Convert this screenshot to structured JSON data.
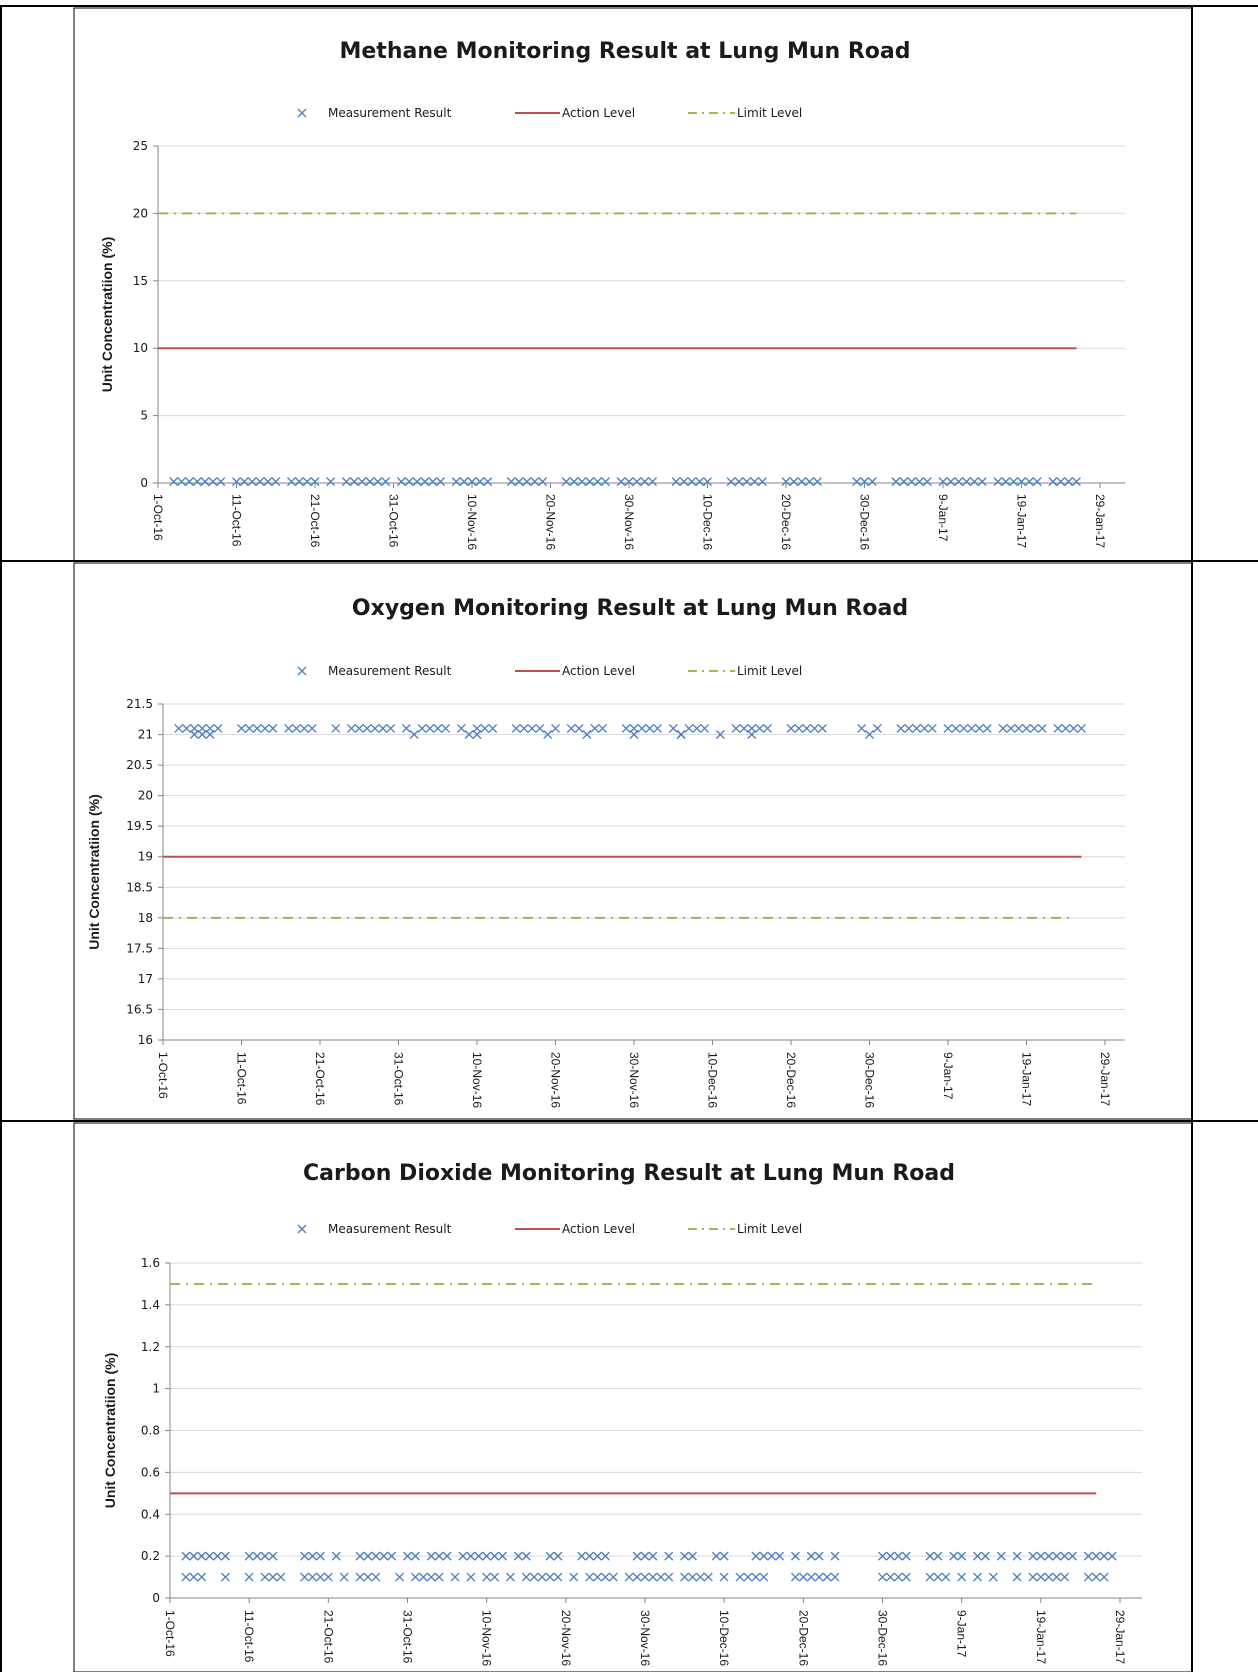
{
  "colors": {
    "measurement": "#4f81bd",
    "action": "#c0504d",
    "limit": "#9bbb59",
    "grid": "#d9d9d9",
    "axis": "#868686",
    "border": "#000000"
  },
  "chart_data": [
    {
      "type": "scatter",
      "title": "Methane Monitoring Result at Lung Mun Road",
      "ylabel": "Unit Concentratiion (%)",
      "xlabel": "",
      "legend": [
        "Measurement Result",
        "Action Level",
        "Limit Level"
      ],
      "legend_position": "top",
      "grid": true,
      "x_ticks": [
        "1-Oct-16",
        "11-Oct-16",
        "21-Oct-16",
        "31-Oct-16",
        "10-Nov-16",
        "20-Nov-16",
        "30-Nov-16",
        "10-Dec-16",
        "20-Dec-16",
        "30-Dec-16",
        "9-Jan-17",
        "19-Jan-17",
        "29-Jan-17"
      ],
      "y_ticks": [
        "0",
        "5",
        "10",
        "15",
        "20",
        "25"
      ],
      "xlim": [
        "1-Oct-16",
        "29-Jan-17"
      ],
      "ylim": [
        0,
        25
      ],
      "series": [
        {
          "name": "Action Level",
          "line": 10,
          "x_start": "1-Oct-16",
          "x_end": "26-Jan-17"
        },
        {
          "name": "Limit Level",
          "line": 20,
          "x_start": "1-Oct-16",
          "x_end": "26-Jan-17"
        },
        {
          "name": "Measurement Result",
          "measurement_dates": [
            "3-Oct-16",
            "4-Oct-16",
            "5-Oct-16",
            "6-Oct-16",
            "7-Oct-16",
            "8-Oct-16",
            "9-Oct-16",
            "11-Oct-16",
            "12-Oct-16",
            "13-Oct-16",
            "14-Oct-16",
            "15-Oct-16",
            "16-Oct-16",
            "18-Oct-16",
            "19-Oct-16",
            "20-Oct-16",
            "21-Oct-16",
            "23-Oct-16",
            "25-Oct-16",
            "26-Oct-16",
            "27-Oct-16",
            "28-Oct-16",
            "29-Oct-16",
            "30-Oct-16",
            "1-Nov-16",
            "2-Nov-16",
            "3-Nov-16",
            "4-Nov-16",
            "5-Nov-16",
            "6-Nov-16",
            "8-Nov-16",
            "9-Nov-16",
            "10-Nov-16",
            "11-Nov-16",
            "12-Nov-16",
            "15-Nov-16",
            "16-Nov-16",
            "17-Nov-16",
            "18-Nov-16",
            "19-Nov-16",
            "22-Nov-16",
            "23-Nov-16",
            "24-Nov-16",
            "25-Nov-16",
            "26-Nov-16",
            "27-Nov-16",
            "29-Nov-16",
            "30-Nov-16",
            "1-Dec-16",
            "2-Dec-16",
            "3-Dec-16",
            "6-Dec-16",
            "7-Dec-16",
            "8-Dec-16",
            "9-Dec-16",
            "10-Dec-16",
            "13-Dec-16",
            "14-Dec-16",
            "15-Dec-16",
            "16-Dec-16",
            "17-Dec-16",
            "20-Dec-16",
            "21-Dec-16",
            "22-Dec-16",
            "23-Dec-16",
            "24-Dec-16",
            "29-Dec-16",
            "30-Dec-16",
            "31-Dec-16",
            "3-Jan-17",
            "4-Jan-17",
            "5-Jan-17",
            "6-Jan-17",
            "7-Jan-17",
            "9-Jan-17",
            "10-Jan-17",
            "11-Jan-17",
            "12-Jan-17",
            "13-Jan-17",
            "14-Jan-17",
            "16-Jan-17",
            "17-Jan-17",
            "18-Jan-17",
            "19-Jan-17",
            "20-Jan-17",
            "21-Jan-17",
            "23-Jan-17",
            "24-Jan-17",
            "25-Jan-17",
            "26-Jan-17"
          ],
          "values": [
            0.1,
            0.1,
            0.1,
            0.1,
            0.1,
            0.1,
            0.1,
            0.1,
            0.1,
            0.1,
            0.1,
            0.1,
            0.1,
            0.1,
            0.1,
            0.1,
            0.1,
            0.1,
            0.1,
            0.1,
            0.1,
            0.1,
            0.1,
            0.1,
            0.1,
            0.1,
            0.1,
            0.1,
            0.1,
            0.1,
            0.1,
            0.1,
            0.1,
            0.1,
            0.1,
            0.1,
            0.1,
            0.1,
            0.1,
            0.1,
            0.1,
            0.1,
            0.1,
            0.1,
            0.1,
            0.1,
            0.1,
            0.1,
            0.1,
            0.1,
            0.1,
            0.1,
            0.1,
            0.1,
            0.1,
            0.1,
            0.1,
            0.1,
            0.1,
            0.1,
            0.1,
            0.1,
            0.1,
            0.1,
            0.1,
            0.1,
            0.1,
            0.1,
            0.1,
            0.1,
            0.1,
            0.1,
            0.1,
            0.1,
            0.1,
            0.1,
            0.1,
            0.1,
            0.1,
            0.1,
            0.1,
            0.1,
            0.1,
            0.1,
            0.1,
            0.1,
            0.1,
            0.1,
            0.1,
            0.1
          ]
        }
      ]
    },
    {
      "type": "scatter",
      "title": "Oxygen Monitoring Result at Lung Mun Road",
      "ylabel": "Unit Concentratiion (%)",
      "xlabel": "",
      "legend": [
        "Measurement Result",
        "Action Level",
        "Limit Level"
      ],
      "legend_position": "top",
      "grid": true,
      "x_ticks": [
        "1-Oct-16",
        "11-Oct-16",
        "21-Oct-16",
        "31-Oct-16",
        "10-Nov-16",
        "20-Nov-16",
        "30-Nov-16",
        "10-Dec-16",
        "20-Dec-16",
        "30-Dec-16",
        "9-Jan-17",
        "19-Jan-17",
        "29-Jan-17"
      ],
      "y_ticks": [
        "16",
        "16.5",
        "17",
        "17.5",
        "18",
        "18.5",
        "19",
        "19.5",
        "20",
        "20.5",
        "21",
        "21.5"
      ],
      "xlim": [
        "1-Oct-16",
        "29-Jan-17"
      ],
      "ylim": [
        16,
        21.5
      ],
      "series": [
        {
          "name": "Action Level",
          "line": 19,
          "x_start": "1-Oct-16",
          "x_end": "26-Jan-17"
        },
        {
          "name": "Limit Level",
          "line": 18,
          "x_start": "1-Oct-16",
          "x_end": "25-Jan-17"
        },
        {
          "name": "Measurement Result",
          "measurement_dates": [
            "3-Oct-16",
            "4-Oct-16",
            "5-Oct-16",
            "5-Oct-16",
            "6-Oct-16",
            "6-Oct-16",
            "7-Oct-16",
            "7-Oct-16",
            "8-Oct-16",
            "11-Oct-16",
            "12-Oct-16",
            "13-Oct-16",
            "14-Oct-16",
            "15-Oct-16",
            "17-Oct-16",
            "18-Oct-16",
            "19-Oct-16",
            "20-Oct-16",
            "23-Oct-16",
            "25-Oct-16",
            "26-Oct-16",
            "27-Oct-16",
            "28-Oct-16",
            "29-Oct-16",
            "30-Oct-16",
            "1-Nov-16",
            "2-Nov-16",
            "3-Nov-16",
            "4-Nov-16",
            "5-Nov-16",
            "6-Nov-16",
            "8-Nov-16",
            "9-Nov-16",
            "10-Nov-16",
            "10-Nov-16",
            "11-Nov-16",
            "12-Nov-16",
            "15-Nov-16",
            "16-Nov-16",
            "17-Nov-16",
            "18-Nov-16",
            "19-Nov-16",
            "20-Nov-16",
            "22-Nov-16",
            "23-Nov-16",
            "24-Nov-16",
            "25-Nov-16",
            "26-Nov-16",
            "29-Nov-16",
            "30-Nov-16",
            "30-Nov-16",
            "1-Dec-16",
            "2-Dec-16",
            "3-Dec-16",
            "5-Dec-16",
            "6-Dec-16",
            "6-Dec-16",
            "7-Dec-16",
            "8-Dec-16",
            "9-Dec-16",
            "11-Dec-16",
            "13-Dec-16",
            "14-Dec-16",
            "15-Dec-16",
            "15-Dec-16",
            "16-Dec-16",
            "17-Dec-16",
            "20-Dec-16",
            "21-Dec-16",
            "22-Dec-16",
            "23-Dec-16",
            "24-Dec-16",
            "29-Dec-16",
            "30-Dec-16",
            "31-Dec-16",
            "3-Jan-17",
            "4-Jan-17",
            "5-Jan-17",
            "6-Jan-17",
            "7-Jan-17",
            "9-Jan-17",
            "10-Jan-17",
            "11-Jan-17",
            "12-Jan-17",
            "13-Jan-17",
            "14-Jan-17",
            "16-Jan-17",
            "17-Jan-17",
            "18-Jan-17",
            "19-Jan-17",
            "20-Jan-17",
            "21-Jan-17",
            "23-Jan-17",
            "24-Jan-17",
            "25-Jan-17",
            "26-Jan-17"
          ],
          "values": [
            21.1,
            21.1,
            21.1,
            21.0,
            21.1,
            21.0,
            21.1,
            21.0,
            21.1,
            21.1,
            21.1,
            21.1,
            21.1,
            21.1,
            21.1,
            21.1,
            21.1,
            21.1,
            21.1,
            21.1,
            21.1,
            21.1,
            21.1,
            21.1,
            21.1,
            21.1,
            21.0,
            21.1,
            21.1,
            21.1,
            21.1,
            21.1,
            21.0,
            21.1,
            21.0,
            21.1,
            21.1,
            21.1,
            21.1,
            21.1,
            21.1,
            21.0,
            21.1,
            21.1,
            21.1,
            21.0,
            21.1,
            21.1,
            21.1,
            21.0,
            21.1,
            21.1,
            21.1,
            21.1,
            21.1,
            21.0,
            21.0,
            21.1,
            21.1,
            21.1,
            21.0,
            21.1,
            21.1,
            21.0,
            21.1,
            21.1,
            21.1,
            21.1,
            21.1,
            21.1,
            21.1,
            21.1,
            21.1,
            21.0,
            21.1,
            21.1,
            21.1,
            21.1,
            21.1,
            21.1,
            21.1,
            21.1,
            21.1,
            21.1,
            21.1,
            21.1,
            21.1,
            21.1,
            21.1,
            21.1,
            21.1,
            21.1,
            21.1,
            21.1,
            21.1,
            21.1
          ]
        }
      ]
    },
    {
      "type": "scatter",
      "title": "Carbon Dioxide Monitoring Result at Lung Mun Road",
      "ylabel": "Unit Concentratiion (%)",
      "xlabel": "",
      "legend": [
        "Measurement Result",
        "Action Level",
        "Limit Level"
      ],
      "legend_position": "top",
      "grid": true,
      "x_ticks": [
        "1-Oct-16",
        "11-Oct-16",
        "21-Oct-16",
        "31-Oct-16",
        "10-Nov-16",
        "20-Nov-16",
        "30-Nov-16",
        "10-Dec-16",
        "20-Dec-16",
        "30-Dec-16",
        "9-Jan-17",
        "19-Jan-17",
        "29-Jan-17"
      ],
      "y_ticks": [
        "0",
        "0.2",
        "0.4",
        "0.6",
        "0.8",
        "1",
        "1.2",
        "1.4",
        "1.6"
      ],
      "xlim": [
        "1-Oct-16",
        "29-Jan-17"
      ],
      "ylim": [
        0,
        1.6
      ],
      "series": [
        {
          "name": "Action Level",
          "line": 0.5,
          "x_start": "1-Oct-16",
          "x_end": "26-Jan-17"
        },
        {
          "name": "Limit Level",
          "line": 1.5,
          "x_start": "1-Oct-16",
          "x_end": "26-Jan-17"
        },
        {
          "name": "Measurement Result",
          "measurement_dates": [
            "3-Oct-16",
            "4-Oct-16",
            "5-Oct-16",
            "6-Oct-16",
            "7-Oct-16",
            "8-Oct-16",
            "11-Oct-16",
            "12-Oct-16",
            "13-Oct-16",
            "14-Oct-16",
            "18-Oct-16",
            "19-Oct-16",
            "20-Oct-16",
            "22-Oct-16",
            "25-Oct-16",
            "26-Oct-16",
            "27-Oct-16",
            "28-Oct-16",
            "29-Oct-16",
            "31-Oct-16",
            "1-Nov-16",
            "3-Nov-16",
            "4-Nov-16",
            "5-Nov-16",
            "7-Nov-16",
            "8-Nov-16",
            "9-Nov-16",
            "10-Nov-16",
            "11-Nov-16",
            "12-Nov-16",
            "14-Nov-16",
            "15-Nov-16",
            "18-Nov-16",
            "19-Nov-16",
            "22-Nov-16",
            "23-Nov-16",
            "24-Nov-16",
            "25-Nov-16",
            "29-Nov-16",
            "30-Nov-16",
            "1-Dec-16",
            "3-Dec-16",
            "5-Dec-16",
            "6-Dec-16",
            "9-Dec-16",
            "10-Dec-16",
            "14-Dec-16",
            "15-Dec-16",
            "16-Dec-16",
            "17-Dec-16",
            "19-Dec-16",
            "21-Dec-16",
            "22-Dec-16",
            "24-Dec-16",
            "30-Dec-16",
            "31-Dec-16",
            "1-Jan-17",
            "2-Jan-17",
            "5-Jan-17",
            "6-Jan-17",
            "8-Jan-17",
            "9-Jan-17",
            "11-Jan-17",
            "12-Jan-17",
            "14-Jan-17",
            "16-Jan-17",
            "18-Jan-17",
            "19-Jan-17",
            "20-Jan-17",
            "21-Jan-17",
            "22-Jan-17",
            "23-Jan-17",
            "25-Jan-17",
            "26-Jan-17",
            "27-Jan-17",
            "28-Jan-17",
            "3-Oct-16",
            "4-Oct-16",
            "5-Oct-16",
            "8-Oct-16",
            "11-Oct-16",
            "13-Oct-16",
            "14-Oct-16",
            "15-Oct-16",
            "18-Oct-16",
            "19-Oct-16",
            "20-Oct-16",
            "21-Oct-16",
            "23-Oct-16",
            "25-Oct-16",
            "26-Oct-16",
            "27-Oct-16",
            "30-Oct-16",
            "1-Nov-16",
            "2-Nov-16",
            "3-Nov-16",
            "4-Nov-16",
            "6-Nov-16",
            "8-Nov-16",
            "10-Nov-16",
            "11-Nov-16",
            "13-Nov-16",
            "15-Nov-16",
            "16-Nov-16",
            "17-Nov-16",
            "18-Nov-16",
            "19-Nov-16",
            "21-Nov-16",
            "23-Nov-16",
            "24-Nov-16",
            "25-Nov-16",
            "26-Nov-16",
            "28-Nov-16",
            "29-Nov-16",
            "30-Nov-16",
            "1-Dec-16",
            "2-Dec-16",
            "3-Dec-16",
            "5-Dec-16",
            "6-Dec-16",
            "7-Dec-16",
            "8-Dec-16",
            "10-Dec-16",
            "12-Dec-16",
            "13-Dec-16",
            "14-Dec-16",
            "15-Dec-16",
            "19-Dec-16",
            "20-Dec-16",
            "21-Dec-16",
            "22-Dec-16",
            "23-Dec-16",
            "24-Dec-16",
            "30-Dec-16",
            "31-Dec-16",
            "1-Jan-17",
            "2-Jan-17",
            "5-Jan-17",
            "6-Jan-17",
            "7-Jan-17",
            "9-Jan-17",
            "11-Jan-17",
            "13-Jan-17",
            "16-Jan-17",
            "18-Jan-17",
            "19-Jan-17",
            "20-Jan-17",
            "21-Jan-17",
            "22-Jan-17",
            "25-Jan-17",
            "26-Jan-17",
            "27-Jan-17"
          ],
          "values": [
            0.2,
            0.2,
            0.2,
            0.2,
            0.2,
            0.2,
            0.2,
            0.2,
            0.2,
            0.2,
            0.2,
            0.2,
            0.2,
            0.2,
            0.2,
            0.2,
            0.2,
            0.2,
            0.2,
            0.2,
            0.2,
            0.2,
            0.2,
            0.2,
            0.2,
            0.2,
            0.2,
            0.2,
            0.2,
            0.2,
            0.2,
            0.2,
            0.2,
            0.2,
            0.2,
            0.2,
            0.2,
            0.2,
            0.2,
            0.2,
            0.2,
            0.2,
            0.2,
            0.2,
            0.2,
            0.2,
            0.2,
            0.2,
            0.2,
            0.2,
            0.2,
            0.2,
            0.2,
            0.2,
            0.2,
            0.2,
            0.2,
            0.2,
            0.2,
            0.2,
            0.2,
            0.2,
            0.2,
            0.2,
            0.2,
            0.2,
            0.2,
            0.2,
            0.2,
            0.2,
            0.2,
            0.2,
            0.2,
            0.2,
            0.2,
            0.2,
            0.1,
            0.1,
            0.1,
            0.1,
            0.1,
            0.1,
            0.1,
            0.1,
            0.1,
            0.1,
            0.1,
            0.1,
            0.1,
            0.1,
            0.1,
            0.1,
            0.1,
            0.1,
            0.1,
            0.1,
            0.1,
            0.1,
            0.1,
            0.1,
            0.1,
            0.1,
            0.1,
            0.1,
            0.1,
            0.1,
            0.1,
            0.1,
            0.1,
            0.1,
            0.1,
            0.1,
            0.1,
            0.1,
            0.1,
            0.1,
            0.1,
            0.1,
            0.1,
            0.1,
            0.1,
            0.1,
            0.1,
            0.1,
            0.1,
            0.1,
            0.1,
            0.1,
            0.1,
            0.1,
            0.1,
            0.1,
            0.1,
            0.1,
            0.1,
            0.1,
            0.1,
            0.1,
            0.1,
            0.1,
            0.1,
            0.1,
            0.1,
            0.1,
            0.1,
            0.1,
            0.1,
            0.1,
            0.1,
            0.1,
            0.1,
            0.1,
            0.1,
            0.1,
            0.1
          ]
        }
      ]
    }
  ]
}
